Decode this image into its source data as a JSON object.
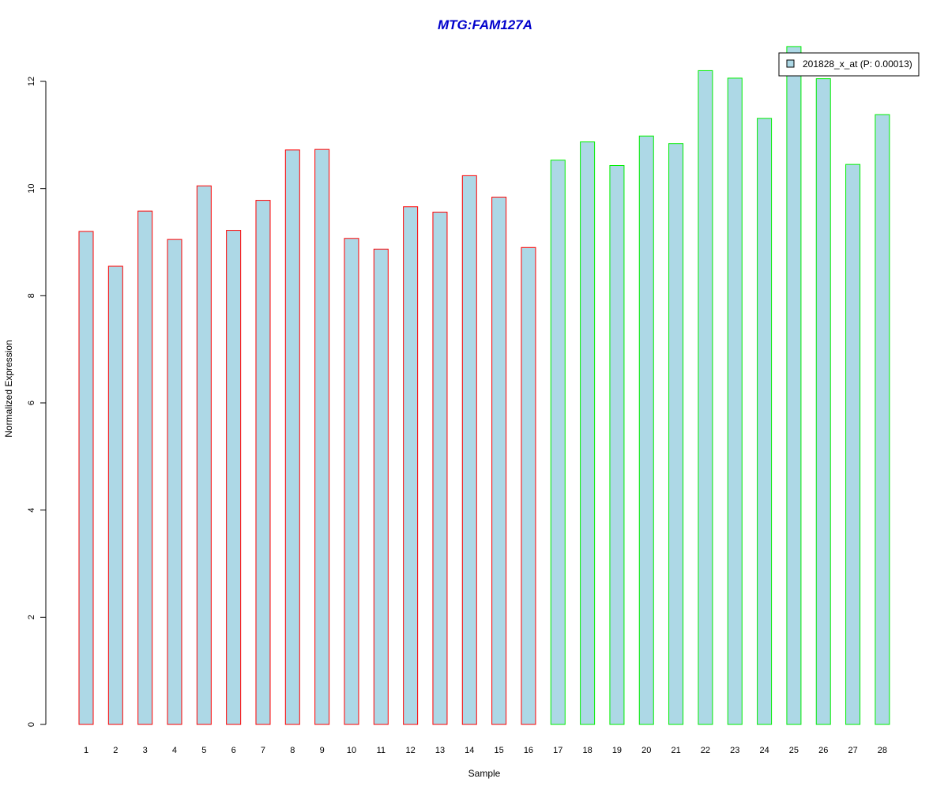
{
  "chart_data": {
    "type": "bar",
    "title": "MTG:FAM127A",
    "xlabel": "Sample",
    "ylabel": "Normalized Expression",
    "categories": [
      "1",
      "2",
      "3",
      "4",
      "5",
      "6",
      "7",
      "8",
      "9",
      "10",
      "11",
      "12",
      "13",
      "14",
      "15",
      "16",
      "17",
      "18",
      "19",
      "20",
      "21",
      "22",
      "23",
      "24",
      "25",
      "26",
      "27",
      "28"
    ],
    "series": [
      {
        "name": "201828_x_at (P: 0.00013)",
        "values": [
          9.2,
          8.55,
          9.58,
          9.05,
          10.05,
          9.22,
          9.78,
          10.72,
          10.73,
          9.07,
          8.87,
          9.66,
          9.56,
          10.24,
          9.84,
          8.9,
          10.53,
          10.87,
          10.43,
          10.98,
          10.84,
          12.2,
          12.06,
          11.31,
          12.65,
          12.05,
          10.45,
          11.38
        ]
      }
    ],
    "yticks": [
      0,
      2,
      4,
      6,
      8,
      10,
      12
    ],
    "ylim": [
      0,
      12.65
    ],
    "grid": false,
    "legend_position": "top-right",
    "colors": {
      "title": "#0000cc",
      "bar_fill": "#add8e6",
      "group_a_border": "#ff0000",
      "group_b_border": "#00ee00"
    },
    "border_groups": [
      "a",
      "a",
      "a",
      "a",
      "a",
      "a",
      "a",
      "a",
      "a",
      "a",
      "a",
      "a",
      "a",
      "a",
      "a",
      "a",
      "b",
      "b",
      "b",
      "b",
      "b",
      "b",
      "b",
      "b",
      "b",
      "b",
      "b",
      "b"
    ]
  }
}
